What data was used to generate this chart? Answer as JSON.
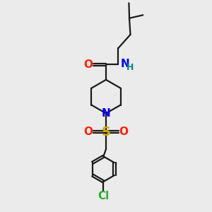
{
  "bg_color": "#ebebeb",
  "bond_color": "#1a1a1a",
  "O_color": "#ff2000",
  "N_color": "#0000ee",
  "S_color": "#ccaa00",
  "Cl_color": "#33aa33",
  "H_color": "#008888",
  "line_width": 1.6,
  "font_size": 11,
  "small_font_size": 9,
  "fig_w": 3.0,
  "fig_h": 3.0,
  "dpi": 100,
  "xlim": [
    0,
    10
  ],
  "ylim": [
    0,
    10
  ]
}
